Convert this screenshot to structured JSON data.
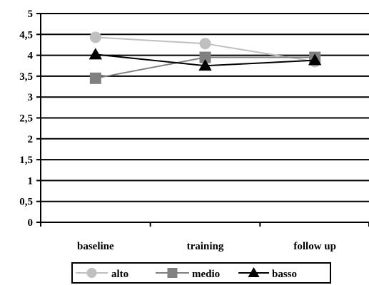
{
  "chart_data": {
    "type": "line",
    "categories": [
      "baseline",
      "training",
      "follow up"
    ],
    "ylim": [
      0,
      5
    ],
    "y_ticks": [
      "0",
      "0,5",
      "1",
      "1,5",
      "2",
      "2,5",
      "3",
      "3,5",
      "4",
      "4,5",
      "5"
    ],
    "grid": true,
    "legend_position": "bottom",
    "series": [
      {
        "name": "alto",
        "values": [
          4.43,
          4.28,
          3.85
        ],
        "color": "#c0c0c0",
        "marker": "circle"
      },
      {
        "name": "medio",
        "values": [
          3.45,
          3.95,
          3.95
        ],
        "color": "#808080",
        "marker": "square"
      },
      {
        "name": "basso",
        "values": [
          4.02,
          3.75,
          3.88
        ],
        "color": "#000000",
        "marker": "triangle"
      }
    ]
  }
}
